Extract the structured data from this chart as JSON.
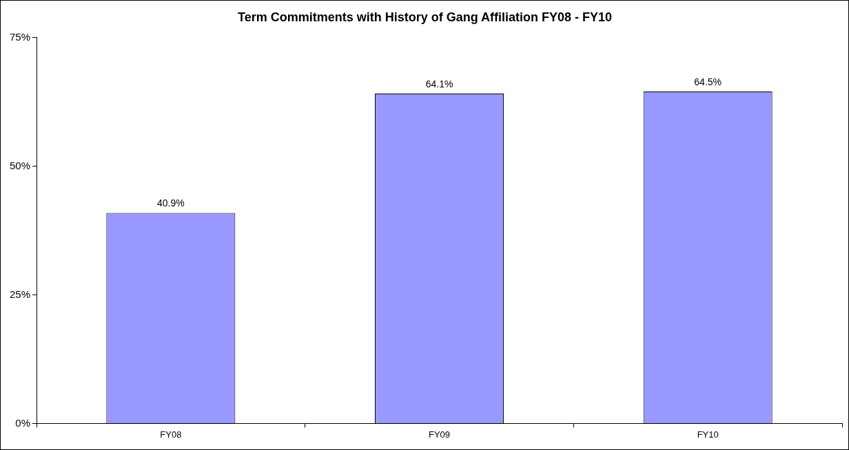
{
  "chart_data": {
    "type": "bar",
    "title": "Term Commitments with History of Gang Affiliation FY08 - FY10",
    "categories": [
      "FY08",
      "FY09",
      "FY10"
    ],
    "values": [
      40.9,
      64.1,
      64.5
    ],
    "value_labels": [
      "40.9%",
      "64.1%",
      "64.5%"
    ],
    "color": "#9999ff",
    "ylim": [
      0,
      75
    ],
    "yticks": [
      {
        "value": 0,
        "label": "0%"
      },
      {
        "value": 25,
        "label": "25%"
      },
      {
        "value": 50,
        "label": "50%"
      },
      {
        "value": 75,
        "label": "75%"
      }
    ],
    "grid": false,
    "legend": false
  }
}
